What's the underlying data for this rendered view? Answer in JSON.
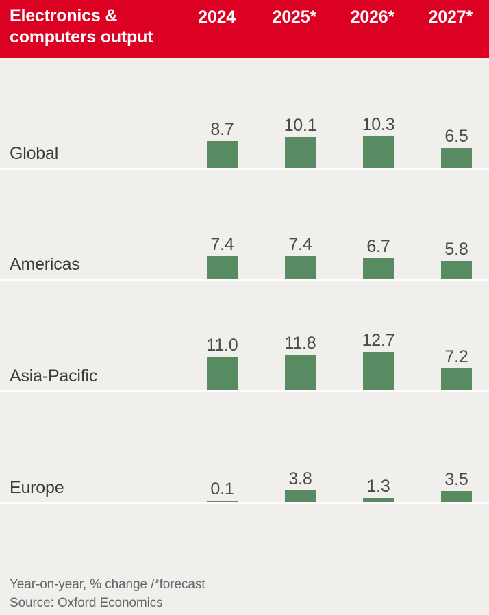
{
  "header": {
    "title": "Electronics &\ncomputers output",
    "columns": [
      "2024",
      "2025*",
      "2026*",
      "2027*"
    ],
    "background_color": "#dc0023",
    "text_color": "#ffffff"
  },
  "rows": [
    {
      "label": "Global",
      "values": [
        "8.7",
        "10.1",
        "10.3",
        "6.5"
      ]
    },
    {
      "label": "Americas",
      "values": [
        "7.4",
        "7.4",
        "6.7",
        "5.8"
      ]
    },
    {
      "label": "Asia-Pacific",
      "values": [
        "11.0",
        "11.8",
        "12.7",
        "7.2"
      ]
    },
    {
      "label": "Europe",
      "values": [
        "0.1",
        "3.8",
        "1.3",
        "3.5"
      ]
    }
  ],
  "footer": {
    "note": "Year-on-year, % change /*forecast",
    "source": "Source: Oxford Economics"
  },
  "colors": {
    "header_red": "#dc0023",
    "bar_green": "#588b61",
    "background": "#f0efeb",
    "label_text": "#3d3b3a",
    "value_text": "#4c4a48",
    "footer_text": "#63656a",
    "baseline": "#ffffff"
  },
  "chart_data": {
    "type": "bar",
    "title": "Electronics & computers output",
    "categories": [
      "2024",
      "2025*",
      "2026*",
      "2027*"
    ],
    "series": [
      {
        "name": "Global",
        "values": [
          8.7,
          10.1,
          10.3,
          6.5
        ]
      },
      {
        "name": "Americas",
        "values": [
          7.4,
          7.4,
          6.7,
          5.8
        ]
      },
      {
        "name": "Asia-Pacific",
        "values": [
          11.0,
          11.8,
          12.7,
          7.2
        ]
      },
      {
        "name": "Europe",
        "values": [
          0.1,
          3.8,
          1.3,
          3.5
        ]
      }
    ],
    "ylabel": "Year-on-year, % change",
    "note": "Year-on-year, % change /*forecast",
    "source": "Source: Oxford Economics",
    "value_labels": true,
    "legend": "none",
    "grid": false,
    "bar_color": "#588b61",
    "layout": "small-multiples-rows"
  }
}
